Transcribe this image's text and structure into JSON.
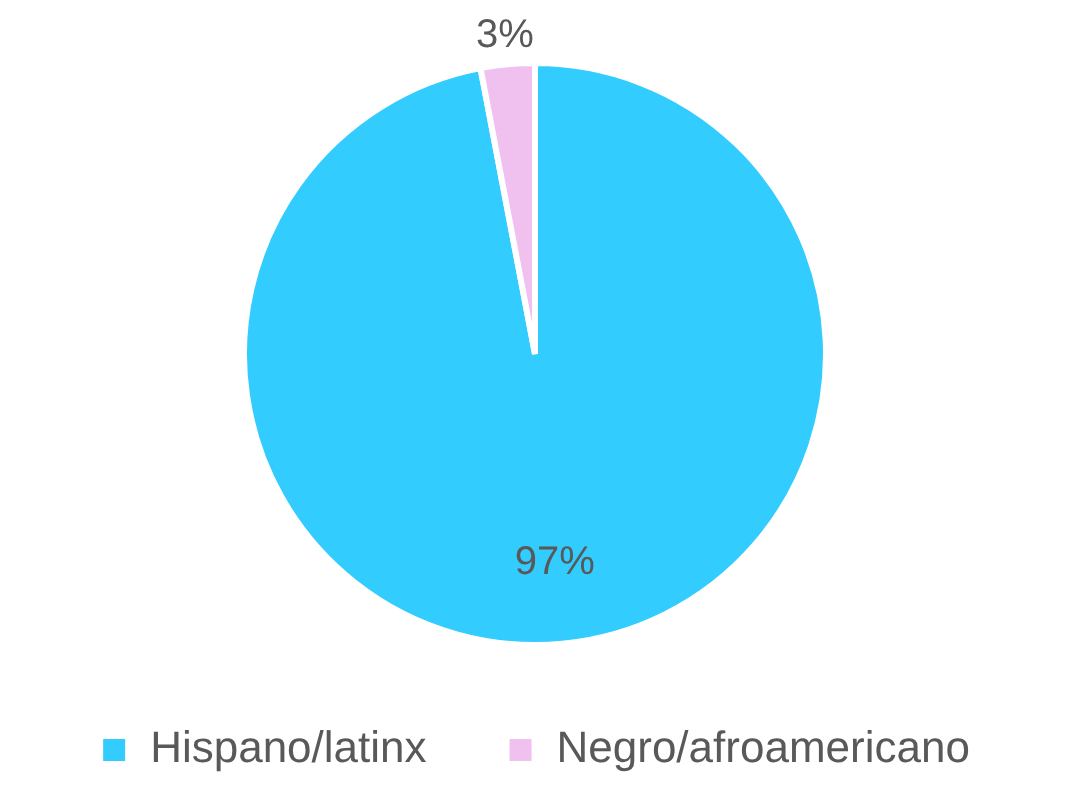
{
  "chart_data": {
    "type": "pie",
    "categories": [
      "Hispano/latinx",
      "Negro/afroamericano"
    ],
    "values": [
      97,
      3
    ],
    "colors": [
      "#33ccff",
      "#f0c0ee"
    ],
    "value_labels": [
      "97%",
      "3%"
    ],
    "legend": "bottom"
  }
}
